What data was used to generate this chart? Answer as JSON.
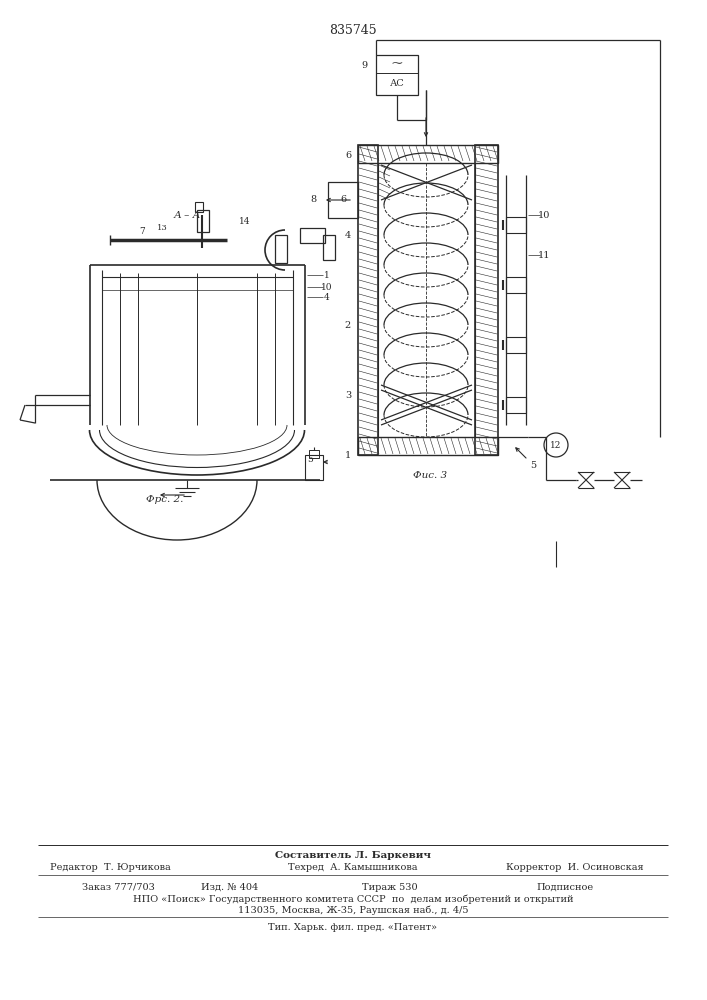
{
  "title": "835745",
  "bg_color": "#ffffff",
  "line_color": "#2a2a2a",
  "fig2_caption": "Фрс. 2.",
  "fig3_caption": "Фис. 3",
  "footer_composer": "Составитель Л. Баркевич",
  "footer_editor": "Редактор  Т. Юрчикова",
  "footer_tech": "Техред  А. Камышникова",
  "footer_corrector": "Корректор  И. Осиновская",
  "footer_order": "Заказ 777/703",
  "footer_izd": "Изд. № 404",
  "footer_tirazh": "Тираж 530",
  "footer_podp": "Подписное",
  "footer_npo": "НПО «Поиск» Государственного комитета СССР  по  делам изобретений и открытий",
  "footer_addr": "113035, Москва, Ж-35, Раушская наб., д. 4/5",
  "footer_tip": "Тип. Харьк. фил. пред. «Патент»"
}
